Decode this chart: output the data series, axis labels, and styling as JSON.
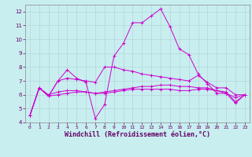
{
  "bg_color": "#c8eef0",
  "grid_color": "#b0d0d0",
  "line_color": "#cc00cc",
  "xlabel": "Windchill (Refroidissement éolien,°C)",
  "xlabel_fontsize": 6.0,
  "xlim": [
    -0.5,
    23.5
  ],
  "ylim": [
    4,
    12.5
  ],
  "yticks": [
    4,
    5,
    6,
    7,
    8,
    9,
    10,
    11,
    12
  ],
  "xticks": [
    0,
    1,
    2,
    3,
    4,
    5,
    6,
    7,
    8,
    9,
    10,
    11,
    12,
    13,
    14,
    15,
    16,
    17,
    18,
    19,
    20,
    21,
    22,
    23
  ],
  "lines": [
    [
      4.5,
      6.5,
      5.9,
      7.0,
      7.8,
      7.2,
      6.9,
      4.3,
      5.3,
      8.8,
      9.7,
      11.2,
      11.2,
      11.7,
      12.2,
      10.9,
      9.3,
      8.9,
      7.5,
      6.8,
      6.1,
      6.1,
      5.4,
      6.0
    ],
    [
      4.5,
      6.5,
      5.9,
      7.0,
      7.2,
      7.1,
      7.0,
      6.9,
      8.0,
      8.0,
      7.8,
      7.7,
      7.5,
      7.4,
      7.3,
      7.2,
      7.1,
      7.0,
      7.4,
      6.9,
      6.5,
      6.5,
      6.0,
      6.0
    ],
    [
      4.5,
      6.5,
      6.0,
      6.2,
      6.3,
      6.3,
      6.2,
      6.1,
      6.2,
      6.3,
      6.4,
      6.5,
      6.6,
      6.6,
      6.7,
      6.7,
      6.6,
      6.6,
      6.5,
      6.5,
      6.3,
      6.1,
      5.8,
      6.0
    ],
    [
      4.5,
      6.5,
      5.9,
      6.0,
      6.1,
      6.2,
      6.2,
      6.1,
      6.1,
      6.2,
      6.3,
      6.4,
      6.4,
      6.4,
      6.4,
      6.4,
      6.3,
      6.3,
      6.4,
      6.4,
      6.3,
      6.2,
      5.5,
      6.0
    ]
  ]
}
